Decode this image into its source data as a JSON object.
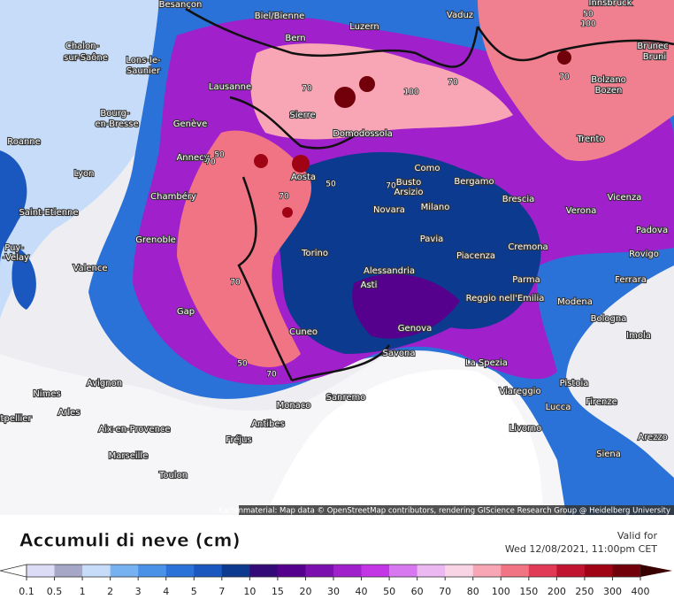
{
  "map": {
    "cities": [
      "Besançon",
      "Biel/Bienne",
      "Vaduz",
      "Innsbruck",
      "Luzern",
      "Bern",
      "Chalon-",
      "sur-Saône",
      "Lons-le-",
      "Saunier",
      "Brunec",
      "Bruni",
      "Bolzano",
      "Bozen",
      "Lausanne",
      "Sierre",
      "Bourg-",
      "en-Bresse",
      "Genève",
      "Domodossola",
      "Trento",
      "Roanne",
      "Annecy",
      "Como",
      "Aosta",
      "Lyon",
      "Busto",
      "Arsizio",
      "Bergamo",
      "Chambéry",
      "Brescia",
      "Vicenza",
      "Novara",
      "Milano",
      "Verona",
      "Saint-Etienne",
      "Padova",
      "Grenoble",
      "Pavia",
      "Cremona",
      "Puy-",
      "-Velay",
      "Torino",
      "Piacenza",
      "Rovigo",
      "Valence",
      "Alessandria",
      "Parma",
      "Ferrara",
      "Asti",
      "Reggio nell'Emilia",
      "Modena",
      "Gap",
      "Bologna",
      "Cuneo",
      "Genova",
      "Imola",
      "Savona",
      "La Spezia",
      "Avignon",
      "Pistoia",
      "Viareggio",
      "Nimes",
      "Sanremo",
      "Firenze",
      "Lucca",
      "Monaco",
      "Arles",
      "atpellier",
      "Arezzo",
      "Antibes",
      "Aix-en-Provence",
      "Livorno",
      "Fréjus",
      "Marseille",
      "Siena",
      "Toulon"
    ],
    "contour_labels": [
      "70",
      "100",
      "70",
      "70",
      "100",
      "50",
      "70",
      "50",
      "70",
      "50",
      "70",
      "50",
      "70",
      "70"
    ],
    "attribution": "Kartenmaterial: Map data © OpenStreetMap contributors, rendering GIScience Research Group @ Heidelberg University"
  },
  "legend": {
    "title": "Accumuli di neve (cm)",
    "valid_label": "Valid for",
    "valid_time": "Wed 12/08/2021, 11:00pm CET",
    "ticks": [
      "0.1",
      "0.5",
      "1",
      "2",
      "3",
      "4",
      "5",
      "7",
      "10",
      "15",
      "20",
      "30",
      "40",
      "50",
      "60",
      "70",
      "80",
      "100",
      "150",
      "200",
      "250",
      "300",
      "400"
    ],
    "under_color": "#ffffff",
    "over_color": "#3a0000",
    "colors": [
      "#dcdcf6",
      "#a6a6c6",
      "#c6dcf8",
      "#76b2f2",
      "#4a92e8",
      "#2a72d8",
      "#1a58c0",
      "#0c3a8e",
      "#340a78",
      "#56008e",
      "#7c10ae",
      "#a020cc",
      "#c236e6",
      "#d878f0",
      "#ecb8f2",
      "#f8d4e4",
      "#f8a6b6",
      "#f07484",
      "#e03a56",
      "#c01430",
      "#a00414",
      "#72000a"
    ]
  }
}
